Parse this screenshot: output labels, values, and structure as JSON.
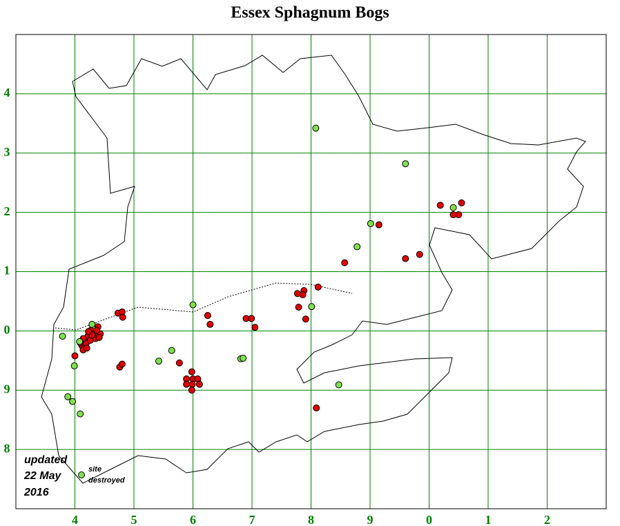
{
  "title": "Essex Sphagnum Bogs",
  "grid": {
    "color": "#008000",
    "xlim": [
      3,
      13
    ],
    "ylim": [
      -3,
      5
    ],
    "xticks": [
      4,
      5,
      6,
      7,
      8,
      9,
      {
        "value": 10,
        "label": "0"
      },
      {
        "value": 11,
        "label": "1"
      },
      {
        "value": 12,
        "label": "2"
      }
    ],
    "yticks": [
      4,
      3,
      2,
      1,
      0,
      {
        "value": -1,
        "label": "9"
      },
      {
        "value": -2,
        "label": "8"
      }
    ]
  },
  "sites": {
    "color": "#e00000",
    "x": [
      4.27,
      4.33,
      4.39,
      4.35,
      4.22,
      4.16,
      4.12,
      4.14,
      4.19,
      4.26,
      4.29,
      4.43,
      4.37,
      4.23,
      4.41,
      4.09,
      4.2,
      4.14,
      4.0,
      4.73,
      4.8,
      4.81,
      4.76,
      4.8,
      5.77,
      5.98,
      5.89,
      6.0,
      6.08,
      5.89,
      5.99,
      6.11,
      5.98,
      6.25,
      6.29,
      6.9,
      6.99,
      7.05,
      7.77,
      7.88,
      7.86,
      8.12,
      7.79,
      7.91,
      8.57,
      9.15,
      10.19,
      10.55,
      10.41,
      10.5,
      9.84,
      9.6,
      8.09
    ],
    "y": [
      0.01,
      -0.04,
      0.07,
      -0.13,
      -0.09,
      -0.19,
      -0.25,
      -0.32,
      -0.21,
      -0.16,
      -0.07,
      -0.05,
      0.01,
      -0.01,
      -0.11,
      -0.2,
      -0.29,
      -0.13,
      -0.42,
      0.3,
      0.32,
      0.23,
      -0.61,
      -0.56,
      -0.54,
      -0.69,
      -0.81,
      -0.81,
      -0.81,
      -0.9,
      -0.9,
      -0.9,
      -1.0,
      0.26,
      0.11,
      0.21,
      0.21,
      0.06,
      0.63,
      0.68,
      0.61,
      0.74,
      0.4,
      0.2,
      1.15,
      1.79,
      2.12,
      2.16,
      1.96,
      1.96,
      1.29,
      1.22,
      -1.3
    ]
  },
  "destroyed_sites": {
    "color": "#80e050",
    "label": [
      "site",
      "destroyed"
    ],
    "x": [
      8.08,
      9.6,
      10.41,
      9.01,
      8.78,
      6.0,
      4.29,
      3.79,
      4.08,
      3.99,
      3.88,
      3.96,
      4.09,
      5.64,
      5.42,
      6.81,
      6.85,
      8.01,
      8.47
    ],
    "y": [
      3.42,
      2.82,
      2.08,
      1.81,
      1.42,
      0.44,
      0.11,
      -0.09,
      -0.18,
      -0.59,
      -1.11,
      -1.19,
      -1.4,
      -0.33,
      -0.51,
      -0.47,
      -0.46,
      0.41,
      -0.91
    ]
  },
  "note": [
    "updated",
    "22 May",
    "2016"
  ]
}
